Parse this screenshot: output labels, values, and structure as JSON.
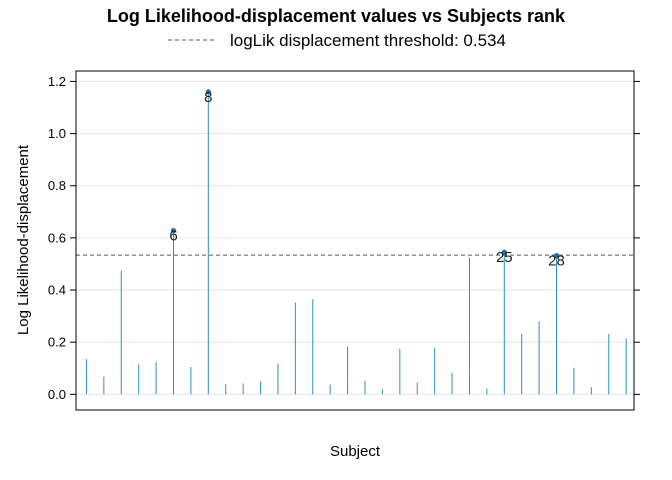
{
  "chart_data": {
    "type": "bar",
    "title": "Log Likelihood-displacement values vs Subjects rank",
    "legend": {
      "entries": [
        {
          "label": "logLik displacement threshold: 0.534",
          "style": "dashed",
          "color": "#555555"
        }
      ],
      "placement": "top-center"
    },
    "xlabel": "Subject",
    "ylabel": "Log Likelihood-displacement",
    "ylim": [
      -0.06,
      1.24
    ],
    "yticks": [
      0.0,
      0.2,
      0.4,
      0.6,
      0.8,
      1.0,
      1.2
    ],
    "ytick_labels": [
      "0.0",
      "0.2",
      "0.4",
      "0.6",
      "0.8",
      "1.0",
      "1.2"
    ],
    "grid": true,
    "threshold": 0.534,
    "x": [
      1,
      2,
      3,
      4,
      5,
      6,
      7,
      8,
      9,
      10,
      11,
      12,
      13,
      14,
      15,
      16,
      17,
      18,
      19,
      20,
      21,
      22,
      23,
      24,
      25,
      26,
      27,
      28,
      29,
      30,
      31,
      32
    ],
    "values": [
      0.135,
      0.068,
      0.475,
      0.115,
      0.125,
      0.628,
      0.105,
      1.16,
      0.038,
      0.042,
      0.05,
      0.118,
      0.352,
      0.365,
      0.038,
      0.183,
      0.052,
      0.02,
      0.175,
      0.045,
      0.178,
      0.082,
      0.525,
      0.022,
      0.545,
      0.232,
      0.28,
      0.532,
      0.102,
      0.028,
      0.232,
      0.215
    ],
    "flagged": [
      {
        "x": 6,
        "label": "6"
      },
      {
        "x": 8,
        "label": "8"
      },
      {
        "x": 25,
        "label": "25"
      },
      {
        "x": 28,
        "label": "28"
      }
    ],
    "colors": {
      "stem": "#2f8fc0",
      "point": "#1f6fa8",
      "threshold": "#555555",
      "grid": "#e6e6e6"
    }
  }
}
